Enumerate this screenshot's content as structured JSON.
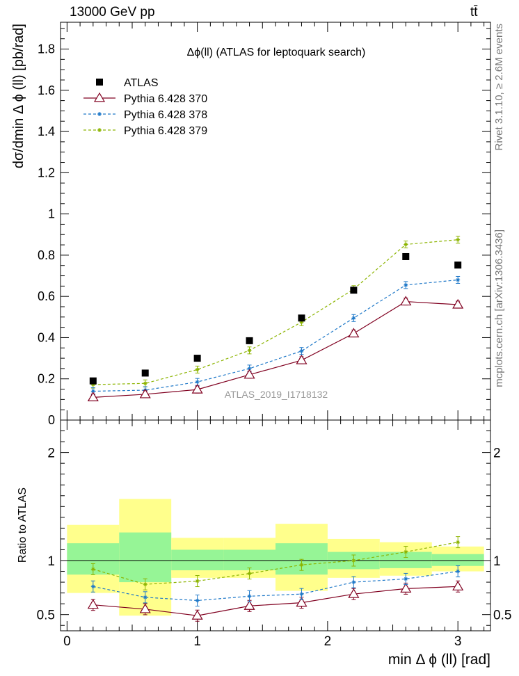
{
  "header": {
    "energy_label": "13000 GeV pp",
    "process_label": "tt̄"
  },
  "side_text": {
    "rivet": "Rivet 3.1.10, ≥ 2.6M events",
    "mcplots": "mcplots.cern.ch [arXiv:1306.3436]"
  },
  "chart_data": [
    {
      "type": "scatter",
      "title": "Δϕ(ll) (ATLAS for leptoquark search)",
      "watermark": "ATLAS_2019_I1718132",
      "ylabel": "dσ/dmin Δ ϕ (ll) [pb/rad]",
      "xlim": [
        -0.05,
        3.25
      ],
      "ylim": [
        0,
        1.93
      ],
      "yticks": [
        "0",
        "0.2",
        "0.4",
        "0.6",
        "0.8",
        "1",
        "1.2",
        "1.4",
        "1.6",
        "1.8"
      ],
      "legend_position": "top-left",
      "x": [
        0.2,
        0.6,
        1.0,
        1.4,
        1.8,
        2.2,
        2.6,
        3.0
      ],
      "series": [
        {
          "name": "ATLAS",
          "color": "#000000",
          "marker": "square",
          "values": [
            0.19,
            0.228,
            0.3,
            0.385,
            0.495,
            0.63,
            0.793,
            0.752
          ]
        },
        {
          "name": "Pythia 6.428 370",
          "color": "#800020",
          "marker": "triangle-open",
          "line": "solid",
          "values": [
            0.11,
            0.125,
            0.148,
            0.22,
            0.29,
            0.42,
            0.575,
            0.56
          ]
        },
        {
          "name": "Pythia 6.428 378",
          "color": "#1e78c8",
          "marker": "star",
          "line": "dashed",
          "values": [
            0.14,
            0.145,
            0.185,
            0.25,
            0.335,
            0.495,
            0.655,
            0.68
          ]
        },
        {
          "name": "Pythia 6.428 379",
          "color": "#8cb400",
          "marker": "star",
          "line": "dashed",
          "values": [
            0.172,
            0.178,
            0.245,
            0.338,
            0.475,
            0.635,
            0.852,
            0.875
          ]
        }
      ]
    },
    {
      "type": "scatter",
      "ylabel": "Ratio to ATLAS",
      "xlabel": "min Δ ϕ (ll) [rad]",
      "xlim": [
        -0.05,
        3.25
      ],
      "ylim": [
        0.35,
        2.3
      ],
      "yticks": [
        "0.5",
        "1",
        "2"
      ],
      "xticks": [
        "0",
        "1",
        "2",
        "3"
      ],
      "x": [
        0.2,
        0.6,
        1.0,
        1.4,
        1.8,
        2.2,
        2.6,
        3.0
      ],
      "bins": [
        0.0,
        0.4,
        0.8,
        1.2,
        1.6,
        2.0,
        2.4,
        2.8,
        3.2
      ],
      "band_inner": [
        [
          0.87,
          1.16
        ],
        [
          0.8,
          1.26
        ],
        [
          0.91,
          1.1
        ],
        [
          0.91,
          1.1
        ],
        [
          0.87,
          1.16
        ],
        [
          0.92,
          1.08
        ],
        [
          0.93,
          1.08
        ],
        [
          0.95,
          1.06
        ]
      ],
      "band_outer": [
        [
          0.7,
          1.33
        ],
        [
          0.49,
          1.57
        ],
        [
          0.84,
          1.21
        ],
        [
          0.84,
          1.21
        ],
        [
          0.72,
          1.34
        ],
        [
          0.84,
          1.2
        ],
        [
          0.86,
          1.17
        ],
        [
          0.9,
          1.13
        ]
      ],
      "series": [
        {
          "name": "Pythia 6.428 370",
          "color": "#800020",
          "values": [
            0.59,
            0.55,
            0.49,
            0.58,
            0.61,
            0.69,
            0.74,
            0.76
          ]
        },
        {
          "name": "Pythia 6.428 378",
          "color": "#1e78c8",
          "values": [
            0.76,
            0.66,
            0.63,
            0.67,
            0.69,
            0.8,
            0.83,
            0.9
          ]
        },
        {
          "name": "Pythia 6.428 379",
          "color": "#8cb400",
          "values": [
            0.92,
            0.78,
            0.81,
            0.88,
            0.96,
            1.0,
            1.08,
            1.17
          ]
        }
      ]
    }
  ]
}
